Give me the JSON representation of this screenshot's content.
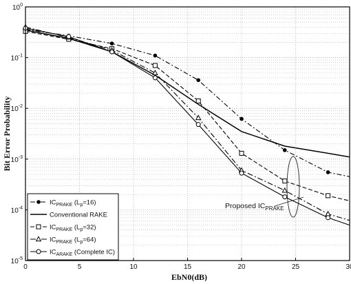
{
  "chart_data": {
    "type": "line",
    "xlabel": "EbN0(dB)",
    "ylabel": "Bit Error Probability",
    "xlim": [
      0,
      30
    ],
    "ylim": [
      1e-05,
      1
    ],
    "yscale": "log",
    "grid": true,
    "legend_placement": "bottom-left",
    "x_ticks": [
      0,
      5,
      10,
      15,
      20,
      25,
      30
    ],
    "y_ticks": [
      -5,
      -4,
      -3,
      -2,
      -1,
      0
    ],
    "series": [
      {
        "key": "ic_prake_16",
        "name": "IC_PRAKE (L_p=16)",
        "legend": {
          "prefix": "IC",
          "sub": "PRAKE",
          "mid": " (L",
          "sub2": "p",
          "suffix": "=16)"
        },
        "marker": "dot",
        "dash": "7,3,2,3",
        "x": [
          0,
          4,
          8,
          12,
          16,
          20,
          24,
          28,
          30
        ],
        "y": [
          0.36,
          0.27,
          0.19,
          0.11,
          0.036,
          0.0062,
          0.0015,
          0.00055,
          0.00045
        ]
      },
      {
        "key": "conventional_rake",
        "name": "Conventional RAKE",
        "legend": {
          "prefix": "Conventional RAKE",
          "sub": "",
          "mid": "",
          "sub2": "",
          "suffix": ""
        },
        "marker": "none",
        "dash": "",
        "x": [
          0,
          4,
          8,
          12,
          16,
          20,
          24,
          28,
          30
        ],
        "y": [
          0.35,
          0.24,
          0.13,
          0.045,
          0.012,
          0.0035,
          0.0018,
          0.0013,
          0.0011
        ]
      },
      {
        "key": "ic_prake_32",
        "name": "IC_PRAKE (L_p=32)",
        "legend": {
          "prefix": "IC",
          "sub": "PRAKE",
          "mid": " (L",
          "sub2": "p",
          "suffix": "=32)"
        },
        "marker": "square",
        "dash": "6,3",
        "x": [
          0,
          4,
          8,
          12,
          16,
          20,
          24,
          28,
          30
        ],
        "y": [
          0.33,
          0.23,
          0.15,
          0.07,
          0.014,
          0.0013,
          0.00037,
          0.00019,
          0.00015
        ]
      },
      {
        "key": "ic_prake_64",
        "name": "IC_PRAKE (L_p=64)",
        "legend": {
          "prefix": "IC",
          "sub": "PRAKE",
          "mid": " (L",
          "sub2": "p",
          "suffix": "=64)"
        },
        "marker": "triangle",
        "dash": "8,3,2,3",
        "x": [
          0,
          4,
          8,
          12,
          16,
          20,
          24,
          28,
          30
        ],
        "y": [
          0.4,
          0.25,
          0.14,
          0.05,
          0.0065,
          0.0006,
          0.00024,
          8.3e-05,
          6.2e-05
        ]
      },
      {
        "key": "ic_arake",
        "name": "IC_ARAKE (Complete IC)",
        "legend": {
          "prefix": "IC",
          "sub": "ARAKE",
          "mid": " (Complete IC)",
          "sub2": "",
          "suffix": ""
        },
        "marker": "circle",
        "dash": "",
        "x": [
          0,
          4,
          8,
          12,
          16,
          20,
          24,
          28,
          30
        ],
        "y": [
          0.38,
          0.26,
          0.13,
          0.04,
          0.0048,
          0.00053,
          0.00018,
          7e-05,
          5e-05
        ]
      }
    ],
    "annotation": {
      "prefix": "Proposed IC",
      "sub": "PRAKE",
      "x": 25,
      "y": 0.00012
    }
  }
}
